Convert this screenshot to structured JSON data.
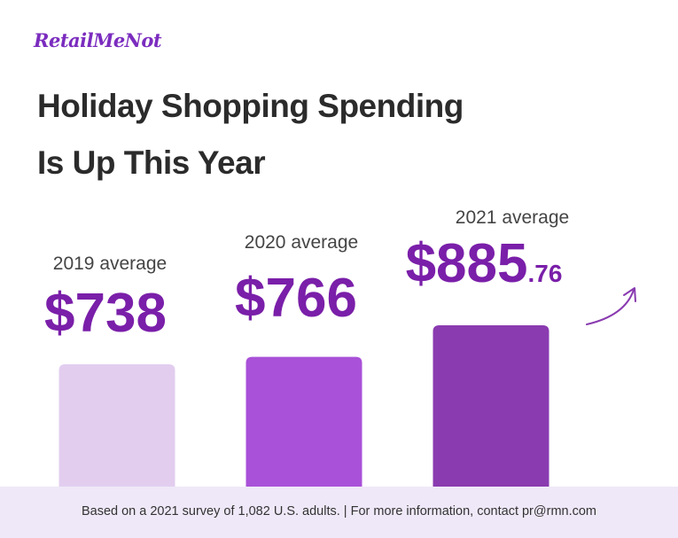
{
  "brand": {
    "logo_text": "RetailMeNot"
  },
  "title": {
    "line1": "Holiday Shopping Spending",
    "line2": "Is Up This Year"
  },
  "footer": {
    "note": "Based on a 2021 survey of 1,082 U.S. adults. | For more information, contact pr@rmn.com"
  },
  "chart_data": {
    "type": "bar",
    "title": "Holiday Shopping Spending Is Up This Year",
    "categories": [
      "2019 average",
      "2020 average",
      "2021 average"
    ],
    "values": [
      738,
      766,
      885.76
    ],
    "value_labels": [
      {
        "main": "$738",
        "cents": ""
      },
      {
        "main": "$766",
        "cents": ""
      },
      {
        "main": "$885",
        "cents": ".76"
      }
    ],
    "colors": [
      "#e2cdef",
      "#a951d8",
      "#8a3bb0"
    ],
    "label_color": "#7a1fa9",
    "axis_visible": false,
    "grid": false,
    "trend_arrow": "up-right"
  }
}
